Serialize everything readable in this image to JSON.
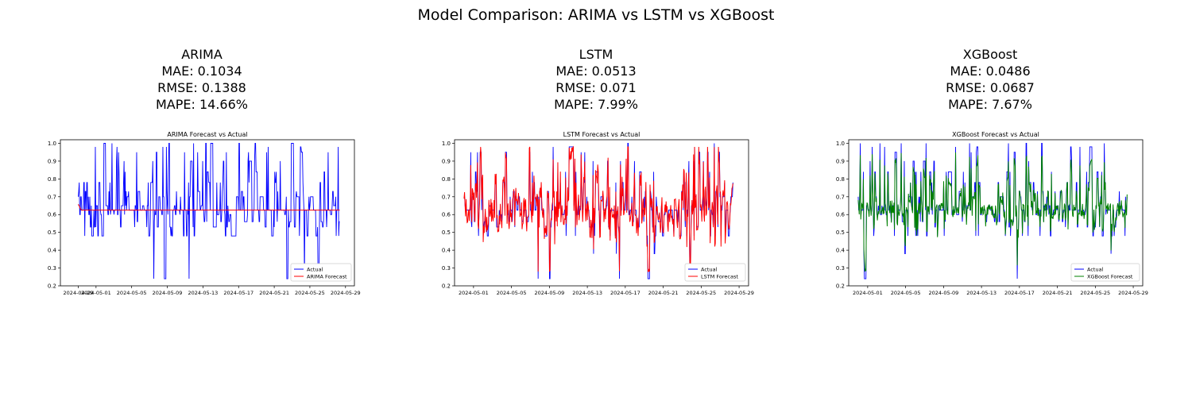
{
  "figure": {
    "suptitle": "Model Comparison: ARIMA vs LSTM vs XGBoost"
  },
  "colors": {
    "actual": "#0000ff",
    "ARIMA": "#ff0000",
    "LSTM": "#ff0000",
    "XGBoost": "#008000"
  },
  "chart_data": [
    {
      "type": "line",
      "model": "ARIMA",
      "metrics": {
        "mae": "MAE: 0.1034",
        "rmse": "RMSE: 0.1388",
        "mape": "MAPE: 14.66%"
      },
      "title": "ARIMA Forecast vs Actual",
      "xlabel": "",
      "ylabel": "",
      "x_range": [
        "2024-04-27",
        "2024-05-30"
      ],
      "xticks": [
        "2024-04-29",
        "2024-05-01",
        "2024-05-05",
        "2024-05-09",
        "2024-05-13",
        "2024-05-17",
        "2024-05-21",
        "2024-05-25",
        "2024-05-29"
      ],
      "ylim": [
        0.2,
        1.02
      ],
      "yticks": [
        "0.2",
        "0.3",
        "0.4",
        "0.5",
        "0.6",
        "0.7",
        "0.8",
        "0.9",
        "1.0"
      ],
      "legend": "lower-right",
      "forecast_style": "flat",
      "forecast_level": 0.625,
      "series": [
        {
          "name": "Actual",
          "color_key": "actual",
          "start": "2024-04-29",
          "end": "2024-05-28"
        },
        {
          "name": "ARIMA Forecast",
          "color_key": "ARIMA",
          "start": "2024-04-29",
          "end": "2024-05-28"
        }
      ]
    },
    {
      "type": "line",
      "model": "LSTM",
      "metrics": {
        "mae": "MAE: 0.0513",
        "rmse": "RMSE: 0.071",
        "mape": "MAPE: 7.99%"
      },
      "title": "LSTM Forecast vs Actual",
      "xlabel": "",
      "ylabel": "",
      "x_range": [
        "2024-04-29",
        "2024-05-30"
      ],
      "xticks": [
        "2024-05-01",
        "2024-05-05",
        "2024-05-09",
        "2024-05-13",
        "2024-05-17",
        "2024-05-21",
        "2024-05-25",
        "2024-05-29"
      ],
      "ylim": [
        0.2,
        1.02
      ],
      "yticks": [
        "0.2",
        "0.3",
        "0.4",
        "0.5",
        "0.6",
        "0.7",
        "0.8",
        "0.9",
        "1.0"
      ],
      "legend": "lower-right",
      "forecast_style": "track",
      "series": [
        {
          "name": "Actual",
          "color_key": "actual",
          "start": "2024-04-30",
          "end": "2024-05-28"
        },
        {
          "name": "LSTM Forecast",
          "color_key": "LSTM",
          "start": "2024-04-30",
          "end": "2024-05-28"
        }
      ]
    },
    {
      "type": "line",
      "model": "XGBoost",
      "metrics": {
        "mae": "MAE: 0.0486",
        "rmse": "RMSE: 0.0687",
        "mape": "MAPE: 7.67%"
      },
      "title": "XGBoost Forecast vs Actual",
      "xlabel": "",
      "ylabel": "",
      "x_range": [
        "2024-04-29",
        "2024-05-30"
      ],
      "xticks": [
        "2024-05-01",
        "2024-05-05",
        "2024-05-09",
        "2024-05-13",
        "2024-05-17",
        "2024-05-21",
        "2024-05-25",
        "2024-05-29"
      ],
      "ylim": [
        0.2,
        1.02
      ],
      "yticks": [
        "0.2",
        "0.3",
        "0.4",
        "0.5",
        "0.6",
        "0.7",
        "0.8",
        "0.9",
        "1.0"
      ],
      "legend": "lower-right",
      "forecast_style": "track",
      "series": [
        {
          "name": "Actual",
          "color_key": "actual",
          "start": "2024-04-30",
          "end": "2024-05-28"
        },
        {
          "name": "XGBoost Forecast",
          "color_key": "XGBoost",
          "start": "2024-04-30",
          "end": "2024-05-28"
        }
      ]
    }
  ]
}
